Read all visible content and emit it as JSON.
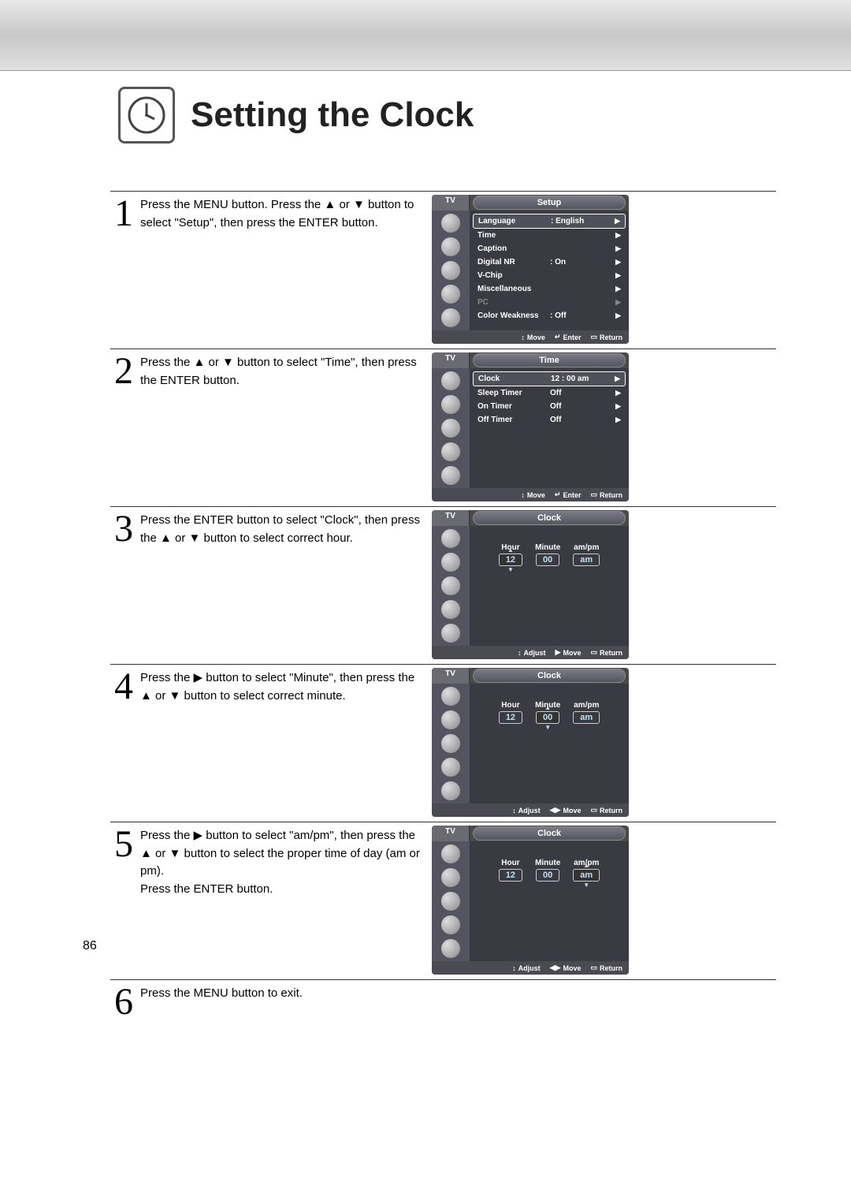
{
  "page": {
    "number": "86",
    "title": "Setting the Clock"
  },
  "steps": [
    {
      "num": "1",
      "text": "Press the MENU button. Press the ▲ or ▼ button to select \"Setup\", then press the ENTER button."
    },
    {
      "num": "2",
      "text": "Press the ▲ or ▼ button to select \"Time\", then press the ENTER button."
    },
    {
      "num": "3",
      "text": "Press the ENTER button to select \"Clock\", then press the ▲ or ▼ button to select correct hour."
    },
    {
      "num": "4",
      "text": "Press the ▶ button to select \"Minute\", then press the ▲ or ▼ button to select correct minute."
    },
    {
      "num": "5",
      "text": "Press the ▶ button to select \"am/pm\", then press the ▲ or ▼ button to select the proper time of day (am or pm).\nPress the ENTER button."
    },
    {
      "num": "6",
      "text": "Press the MENU button to exit."
    }
  ],
  "osd": {
    "tv_label": "TV",
    "setup": {
      "title": "Setup",
      "rows": [
        {
          "label": "Language",
          "value": ": English",
          "selected": true,
          "arrow": true
        },
        {
          "label": "Time",
          "value": "",
          "arrow": true
        },
        {
          "label": "Caption",
          "value": "",
          "arrow": true
        },
        {
          "label": "Digital NR",
          "value": ": On",
          "arrow": true
        },
        {
          "label": "V-Chip",
          "value": "",
          "arrow": true
        },
        {
          "label": "Miscellaneous",
          "value": "",
          "arrow": true
        },
        {
          "label": "PC",
          "value": "",
          "arrow": true,
          "dim": true
        },
        {
          "label": "Color Weakness",
          "value": ": Off",
          "arrow": true
        }
      ],
      "footer": [
        "Move",
        "Enter",
        "Return"
      ]
    },
    "time": {
      "title": "Time",
      "rows": [
        {
          "label": "Clock",
          "value": "12 : 00 am",
          "selected": true,
          "arrow": true
        },
        {
          "label": "Sleep Timer",
          "value": "Off",
          "arrow": true
        },
        {
          "label": "On Timer",
          "value": "Off",
          "arrow": true
        },
        {
          "label": "Off Timer",
          "value": "Off",
          "arrow": true
        }
      ],
      "footer": [
        "Move",
        "Enter",
        "Return"
      ]
    },
    "clock": {
      "title": "Clock",
      "labels": {
        "hour": "Hour",
        "minute": "Minute",
        "ampm": "am/pm"
      },
      "values": {
        "hour": "12",
        "minute": "00",
        "ampm": "am"
      },
      "footer_adjust": [
        "Adjust",
        "Move",
        "Return"
      ],
      "footer_move_lr": [
        "Adjust",
        "Move",
        "Return"
      ]
    },
    "footer_icons": {
      "move": "↕",
      "move_r": "▶",
      "move_lr": "◀▶",
      "enter": "↵",
      "return": "▭"
    }
  },
  "colors": {
    "osd_bg": "#3a3a42",
    "osd_frame": "#4a4a4a",
    "osd_sidebar": "#545460",
    "text_white": "#ffffff",
    "text_dim": "#888888",
    "value_glow": "#c0e0f0",
    "page_bg": "#ffffff",
    "strip_grad_1": "#e8e8e8",
    "strip_grad_2": "#c8c8c8"
  }
}
